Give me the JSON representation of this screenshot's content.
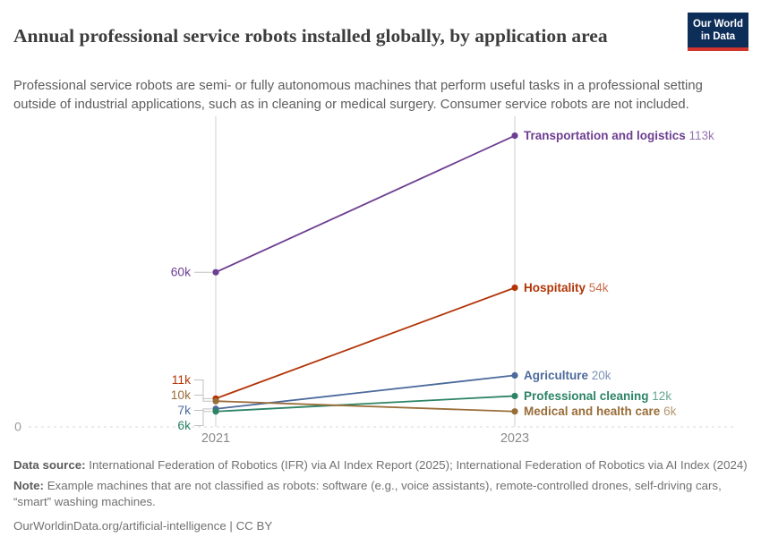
{
  "header": {
    "title": "Annual professional service robots installed globally, by application area",
    "subtitle": "Professional service robots are semi- or fully autonomous machines that perform useful tasks in a professional setting outside of industrial applications, such as in cleaning or medical surgery. Consumer service robots are not included.",
    "logo": {
      "line1": "Our World",
      "line2": "in Data",
      "bg_color": "#0E2E5A",
      "stripe_color": "#D0342C"
    }
  },
  "chart_data": {
    "type": "line",
    "x": [
      2021,
      2023
    ],
    "x_tick_labels": [
      "2021",
      "2023"
    ],
    "y_baseline_label": "0",
    "ylim": [
      0,
      120000
    ],
    "grid": "vertical-lines-plus-dashed-zero-line",
    "legend_position": "inline-right-of-last-point",
    "series": [
      {
        "name": "Transportation and logistics",
        "color": "#6D3E91",
        "values": [
          60000,
          113000
        ],
        "value_labels": [
          "60k",
          "113k"
        ]
      },
      {
        "name": "Hospitality",
        "color": "#B13507",
        "values": [
          11000,
          54000
        ],
        "value_labels": [
          "11k",
          "54k"
        ]
      },
      {
        "name": "Agriculture",
        "color": "#4C6A9C",
        "values": [
          7000,
          20000
        ],
        "value_labels": [
          "7k",
          "20k"
        ]
      },
      {
        "name": "Professional cleaning",
        "color": "#2C8465",
        "values": [
          6000,
          12000
        ],
        "value_labels": [
          "6k",
          "12k"
        ]
      },
      {
        "name": "Medical and health care",
        "color": "#996D39",
        "values": [
          10000,
          6000
        ],
        "value_labels": [
          "10k",
          "6k"
        ]
      }
    ]
  },
  "footer": {
    "data_source_label": "Data source:",
    "data_source": "International Federation of Robotics (IFR) via AI Index Report (2025); International Federation of Robotics via AI Index (2024)",
    "note_label": "Note:",
    "note": "Example machines that are not classified as robots: software (e.g., voice assistants), remote-controlled drones, self-driving cars, “smart” washing machines.",
    "citation": "OurWorldinData.org/artificial-intelligence | CC BY"
  }
}
